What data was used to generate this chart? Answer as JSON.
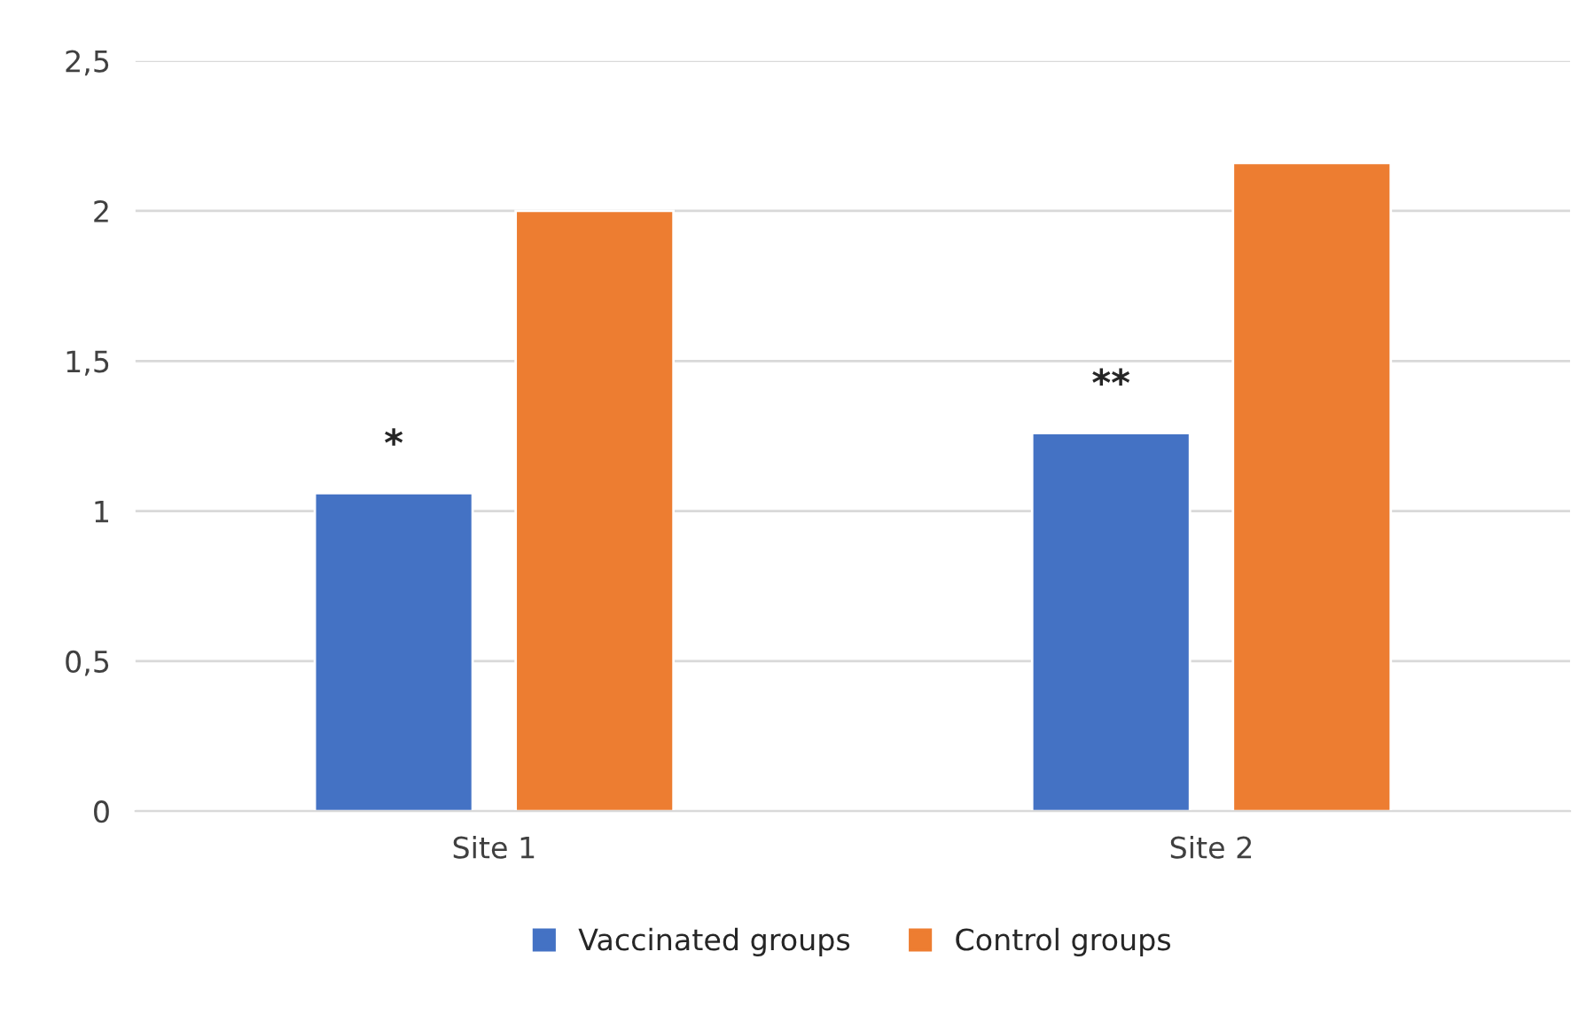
{
  "chart_data": {
    "type": "bar",
    "categories": [
      "Site 1",
      "Site 2"
    ],
    "series": [
      {
        "name": "Vaccinated groups",
        "color": "#4472c4",
        "values": [
          1.06,
          1.26
        ]
      },
      {
        "name": "Control groups",
        "color": "#ed7d31",
        "values": [
          2.0,
          2.16
        ]
      }
    ],
    "ylim": [
      0,
      2.5
    ],
    "yticks": [
      0,
      {
        "value": 0.5,
        "label": "0,5"
      },
      1,
      {
        "value": 1.5,
        "label": "1,5"
      },
      2,
      {
        "value": 2.5,
        "label": "2,5"
      }
    ],
    "grid": "y",
    "legend": "bottom",
    "annotations": [
      "*",
      "**"
    ]
  }
}
